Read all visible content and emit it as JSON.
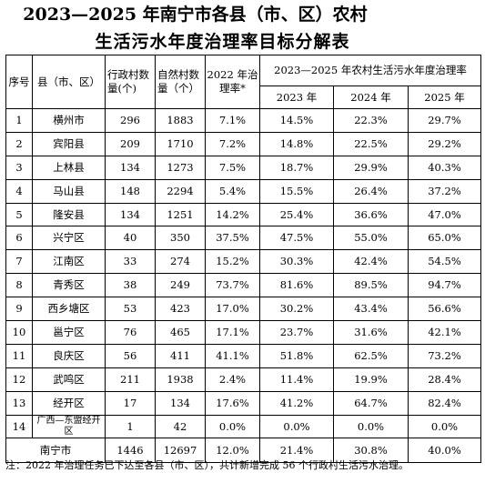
{
  "title_line1": "2023—2025 年南宁市各县（市、区）农村",
  "title_line2": "生活污水年度治理率目标分解表",
  "headers": {
    "seq": "序号",
    "county": "县（市、区）",
    "admin_villages": "行政村数量(个)",
    "natural_villages": "自然村数量（个）",
    "rate_2022": "2022 年治理率*",
    "group_title": "2023—2025 年农村生活污水年度治理率",
    "y2023": "2023 年",
    "y2024": "2024 年",
    "y2025": "2025 年"
  },
  "rows": [
    {
      "seq": "1",
      "county": "横州市",
      "admin": "296",
      "natural": "1883",
      "r2022": "7.1%",
      "r2023": "14.5%",
      "r2024": "22.3%",
      "r2025": "29.7%"
    },
    {
      "seq": "2",
      "county": "宾阳县",
      "admin": "209",
      "natural": "1710",
      "r2022": "7.2%",
      "r2023": "14.8%",
      "r2024": "22.5%",
      "r2025": "29.2%"
    },
    {
      "seq": "3",
      "county": "上林县",
      "admin": "134",
      "natural": "1273",
      "r2022": "7.5%",
      "r2023": "18.7%",
      "r2024": "29.9%",
      "r2025": "40.3%"
    },
    {
      "seq": "4",
      "county": "马山县",
      "admin": "148",
      "natural": "2294",
      "r2022": "5.4%",
      "r2023": "15.5%",
      "r2024": "26.4%",
      "r2025": "37.2%"
    },
    {
      "seq": "5",
      "county": "隆安县",
      "admin": "134",
      "natural": "1251",
      "r2022": "14.2%",
      "r2023": "25.4%",
      "r2024": "36.6%",
      "r2025": "47.0%"
    },
    {
      "seq": "6",
      "county": "兴宁区",
      "admin": "40",
      "natural": "350",
      "r2022": "37.5%",
      "r2023": "47.5%",
      "r2024": "55.0%",
      "r2025": "65.0%"
    },
    {
      "seq": "7",
      "county": "江南区",
      "admin": "33",
      "natural": "274",
      "r2022": "15.2%",
      "r2023": "30.3%",
      "r2024": "42.4%",
      "r2025": "54.5%"
    },
    {
      "seq": "8",
      "county": "青秀区",
      "admin": "38",
      "natural": "249",
      "r2022": "73.7%",
      "r2023": "81.6%",
      "r2024": "89.5%",
      "r2025": "94.7%"
    },
    {
      "seq": "9",
      "county": "西乡塘区",
      "admin": "53",
      "natural": "423",
      "r2022": "17.0%",
      "r2023": "30.2%",
      "r2024": "43.4%",
      "r2025": "56.6%"
    },
    {
      "seq": "10",
      "county": "邕宁区",
      "admin": "76",
      "natural": "465",
      "r2022": "17.1%",
      "r2023": "23.7%",
      "r2024": "31.6%",
      "r2025": "42.1%"
    },
    {
      "seq": "11",
      "county": "良庆区",
      "admin": "56",
      "natural": "411",
      "r2022": "41.1%",
      "r2023": "51.8%",
      "r2024": "62.5%",
      "r2025": "73.2%"
    },
    {
      "seq": "12",
      "county": "武鸣区",
      "admin": "211",
      "natural": "1938",
      "r2022": "2.4%",
      "r2023": "11.4%",
      "r2024": "19.9%",
      "r2025": "28.4%"
    },
    {
      "seq": "13",
      "county": "经开区",
      "admin": "17",
      "natural": "134",
      "r2022": "17.6%",
      "r2023": "41.2%",
      "r2024": "64.7%",
      "r2025": "82.4%"
    },
    {
      "seq": "14",
      "county": "广西—东盟经开区",
      "admin": "1",
      "natural": "42",
      "r2022": "0.0%",
      "r2023": "0.0%",
      "r2024": "0.0%",
      "r2025": "0.0%"
    }
  ],
  "total": {
    "label": "南宁市",
    "admin": "1446",
    "natural": "12697",
    "r2022": "12.0%",
    "r2023": "21.4%",
    "r2024": "30.8%",
    "r2025": "40.0%"
  },
  "note": "注：2022 年治理任务已下达至各县（市、区），共计新增完成 56 个行政村生活污水治理。"
}
